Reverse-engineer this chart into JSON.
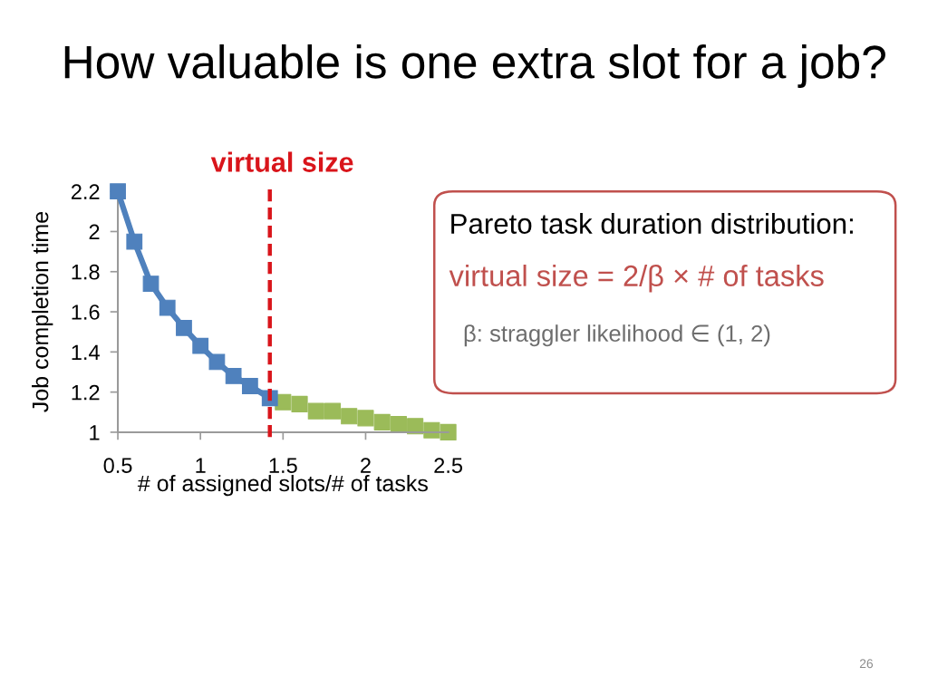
{
  "chart_data": {
    "type": "line",
    "title": "How valuable is one extra slot for a job?",
    "xlabel": "# of assigned slots/# of tasks",
    "ylabel": "Job completion time",
    "series": [
      {
        "color": "#4f81bd",
        "x": [
          0.5,
          0.6,
          0.7,
          0.8,
          0.9,
          1.0,
          1.1,
          1.2,
          1.3,
          1.42
        ],
        "values": [
          2.2,
          1.95,
          1.74,
          1.62,
          1.52,
          1.43,
          1.35,
          1.28,
          1.23,
          1.17
        ]
      },
      {
        "type": "scatter",
        "color": "#9bbb59",
        "x": [
          1.5,
          1.6,
          1.7,
          1.8,
          1.9,
          2.0,
          2.1,
          2.2,
          2.3,
          2.4,
          2.5
        ],
        "values": [
          1.15,
          1.14,
          1.105,
          1.105,
          1.08,
          1.07,
          1.05,
          1.04,
          1.03,
          1.01,
          1.0
        ]
      }
    ],
    "xlim": [
      0.5,
      2.5
    ],
    "ylim": [
      1,
      2.2
    ],
    "xticks": [
      0.5,
      1,
      1.5,
      2,
      2.5
    ],
    "yticks": [
      1,
      1.2,
      1.4,
      1.6,
      1.8,
      2,
      2.2
    ],
    "ref_lines": [
      {
        "axis": "x",
        "value": 1.42,
        "label": "virtual size",
        "color": "#d9151b",
        "line_style": "dashed"
      }
    ],
    "annotations": [
      "Pareto task duration distribution:",
      "virtual size = 2/β × # of tasks",
      "β: straggler likelihood ∈ (1, 2)",
      "26"
    ],
    "marker": "square",
    "grid": false,
    "legend": false
  }
}
